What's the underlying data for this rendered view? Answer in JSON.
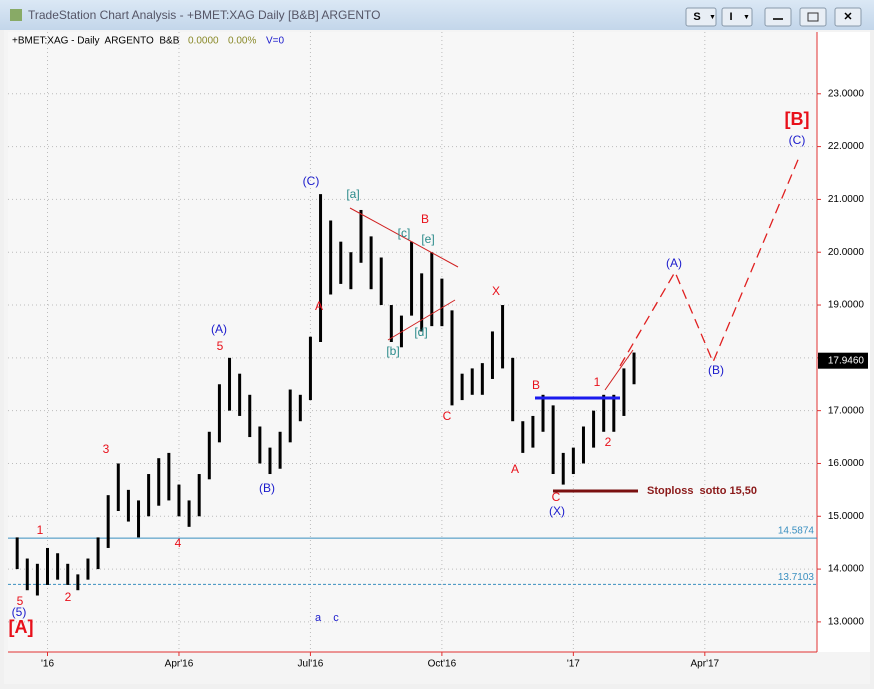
{
  "window": {
    "title": "TradeStation Chart Analysis - +BMET:XAG Daily [B&B] ARGENTO",
    "buttons": [
      "S",
      "I"
    ]
  },
  "chart_data": {
    "type": "hilo",
    "info": {
      "symbol": "+BMET:XAG - Daily  ARGENTO  B&B",
      "change": "0.0000",
      "percent": "0.00%",
      "volume": "V=0"
    },
    "categories": [
      null,
      null,
      null,
      null,
      "'16",
      null,
      null,
      null,
      null,
      null,
      null,
      null,
      null,
      null,
      null,
      null,
      null,
      "Apr'16",
      null,
      null,
      null,
      null,
      null,
      null,
      null,
      null,
      null,
      null,
      null,
      null,
      "Jul'16",
      null,
      null,
      null,
      null,
      null,
      null,
      null,
      null,
      null,
      null,
      null,
      null,
      "Oct'16",
      null,
      null,
      null,
      null,
      null,
      null,
      null,
      null,
      null,
      null,
      null,
      null,
      "'17",
      null,
      null,
      null,
      null,
      null,
      null,
      null,
      null,
      null,
      null,
      null,
      null,
      "Apr'17",
      null,
      null,
      null,
      null,
      null,
      null,
      null,
      null,
      null,
      null
    ],
    "highs": [
      null,
      14.6,
      14.2,
      14.1,
      14.4,
      14.3,
      14.1,
      13.9,
      14.2,
      14.6,
      15.4,
      16.0,
      15.5,
      15.3,
      15.8,
      16.1,
      16.2,
      15.6,
      15.3,
      15.8,
      16.6,
      17.5,
      18.0,
      17.7,
      17.3,
      16.7,
      16.3,
      16.6,
      17.4,
      17.3,
      18.4,
      21.1,
      20.6,
      20.2,
      20.0,
      20.8,
      20.3,
      19.9,
      19.0,
      18.8,
      20.2,
      19.6,
      20.0,
      19.5,
      18.9,
      17.7,
      17.8,
      17.9,
      18.5,
      19.0,
      18.0,
      16.8,
      16.9,
      17.3,
      17.1,
      16.2,
      16.3,
      16.7,
      17.0,
      17.3,
      17.3,
      17.8,
      18.1,
      null,
      null,
      null,
      null,
      null,
      null,
      null,
      null,
      null,
      null,
      null,
      null,
      null,
      null,
      null,
      null,
      null,
      null
    ],
    "lows": [
      null,
      14.0,
      13.6,
      13.5,
      13.7,
      13.8,
      13.7,
      13.6,
      13.8,
      14.0,
      14.4,
      15.1,
      14.9,
      14.6,
      15.0,
      15.2,
      15.3,
      15.0,
      14.8,
      15.0,
      15.7,
      16.4,
      17.0,
      16.9,
      16.5,
      16.0,
      15.8,
      15.9,
      16.4,
      16.8,
      17.2,
      18.3,
      19.2,
      19.4,
      19.3,
      19.8,
      19.3,
      19.0,
      18.3,
      18.2,
      18.8,
      18.5,
      18.6,
      18.6,
      17.1,
      17.2,
      17.3,
      17.3,
      17.6,
      17.8,
      16.8,
      16.2,
      16.3,
      16.6,
      15.8,
      15.6,
      15.8,
      16.0,
      16.3,
      16.6,
      16.6,
      16.9,
      17.5,
      null,
      null,
      null,
      null,
      null,
      null,
      null,
      null,
      null,
      null,
      null,
      null,
      null,
      null,
      null,
      null,
      null,
      null
    ],
    "color": "#000000",
    "ylim": [
      12.43,
      24.17
    ],
    "yticks": [
      {
        "value": 13,
        "label": "13.0000"
      },
      {
        "value": 14,
        "label": "14.0000"
      },
      {
        "value": 15,
        "label": "15.0000"
      },
      {
        "value": 16,
        "label": "16.0000"
      },
      {
        "value": 17,
        "label": "17.0000"
      },
      {
        "value": 18,
        "label": "18.0000"
      },
      {
        "value": 19,
        "label": "19.0000"
      },
      {
        "value": 20,
        "label": "20.0000"
      },
      {
        "value": 21,
        "label": "21.0000"
      },
      {
        "value": 22,
        "label": "22.0000"
      },
      {
        "value": 23,
        "label": "23.0000"
      }
    ],
    "grid": true,
    "last": {
      "value": 17.946,
      "label": "17.9460"
    },
    "hlines": [
      {
        "value": 14.5874,
        "color": "#3a8fc0",
        "dashed": false
      },
      {
        "value": 13.7103,
        "color": "#3a8fc0",
        "dashed": true
      }
    ],
    "annotations": [
      {
        "text": "(5)",
        "color": "#1a1acc"
      },
      {
        "text": "5",
        "color": "#e8101a"
      },
      {
        "text": "[A]",
        "color": "#e8101a"
      },
      {
        "text": "1",
        "color": "#e8101a"
      },
      {
        "text": "2",
        "color": "#e8101a"
      },
      {
        "text": "3",
        "color": "#e8101a"
      },
      {
        "text": "4",
        "color": "#e8101a"
      },
      {
        "text": "5",
        "color": "#e8101a"
      },
      {
        "text": "(A)",
        "color": "#1a1acc"
      },
      {
        "text": "(B)",
        "color": "#1a1acc"
      },
      {
        "text": "(C)",
        "color": "#1a1acc"
      },
      {
        "text": "A",
        "color": "#e8101a"
      },
      {
        "text": "[a]",
        "color": "#2a8a8a"
      },
      {
        "text": "B",
        "color": "#e8101a"
      },
      {
        "text": "[c]",
        "color": "#2a8a8a"
      },
      {
        "text": "[e]",
        "color": "#2a8a8a"
      },
      {
        "text": "[b]",
        "color": "#2a8a8a"
      },
      {
        "text": "[d]",
        "color": "#2a8a8a"
      },
      {
        "text": "C",
        "color": "#e8101a"
      },
      {
        "text": "X",
        "color": "#e8101a"
      },
      {
        "text": "B",
        "color": "#e8101a"
      },
      {
        "text": "A",
        "color": "#e8101a"
      },
      {
        "text": "1",
        "color": "#e8101a"
      },
      {
        "text": "2",
        "color": "#e8101a"
      },
      {
        "text": "C",
        "color": "#e8101a"
      },
      {
        "text": "(X)",
        "color": "#1a1acc"
      },
      {
        "text": "Stoploss  sotto 15,50",
        "color": "#8b1a1a"
      },
      {
        "text": "(A)",
        "color": "#1a1acc"
      },
      {
        "text": "(B)",
        "color": "#1a1acc"
      },
      {
        "text": "(C)",
        "color": "#1a1acc"
      },
      {
        "text": "[B]",
        "color": "#e8101a"
      },
      {
        "text": "a",
        "color": "#1a1acc"
      },
      {
        "text": "c",
        "color": "#1a1acc"
      }
    ]
  }
}
